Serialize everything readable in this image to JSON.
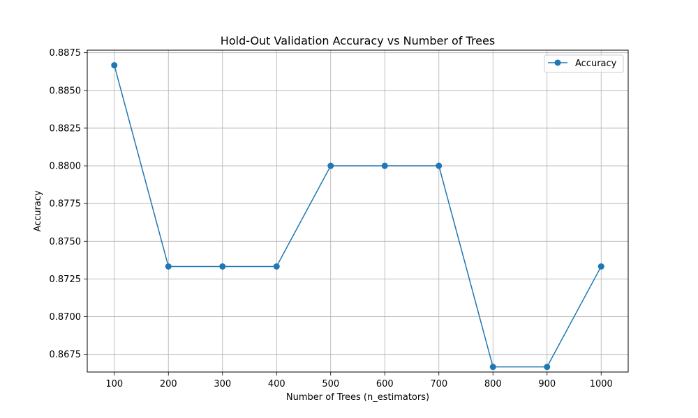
{
  "chart_data": {
    "type": "line",
    "title": "Hold-Out Validation Accuracy vs Number of Trees",
    "xlabel": "Number of Trees (n_estimators)",
    "ylabel": "Accuracy",
    "x": [
      100,
      200,
      300,
      400,
      500,
      600,
      700,
      800,
      900,
      1000
    ],
    "x_tick_labels": [
      "100",
      "200",
      "300",
      "400",
      "500",
      "600",
      "700",
      "800",
      "900",
      "1000"
    ],
    "y_ticks": [
      0.8675,
      0.87,
      0.8725,
      0.875,
      0.8775,
      0.88,
      0.8825,
      0.885,
      0.8875
    ],
    "y_tick_labels": [
      "0.8675",
      "0.8700",
      "0.8725",
      "0.8750",
      "0.8775",
      "0.8800",
      "0.8825",
      "0.8850",
      "0.8875"
    ],
    "xlim": [
      50,
      1050
    ],
    "ylim": [
      0.86633,
      0.88767
    ],
    "grid": true,
    "legend_position": "top-right",
    "series": [
      {
        "name": "Accuracy",
        "color": "#1f77b4",
        "marker": "circle",
        "values": [
          0.88667,
          0.87333,
          0.87333,
          0.87333,
          0.88,
          0.88,
          0.88,
          0.86667,
          0.86667,
          0.87333
        ]
      }
    ]
  }
}
